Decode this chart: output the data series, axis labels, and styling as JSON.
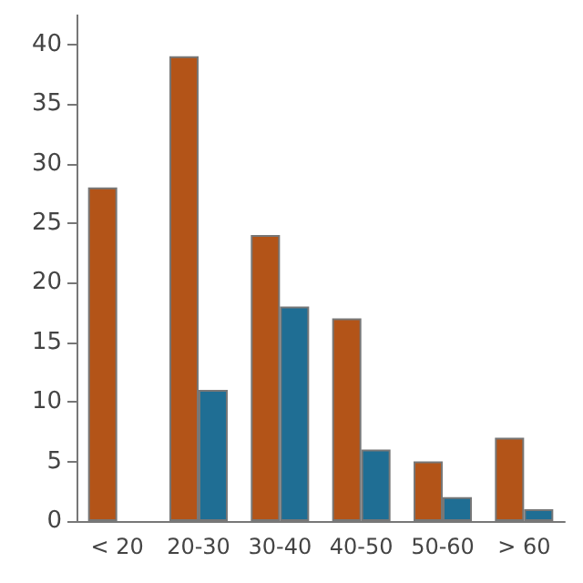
{
  "chart_data": {
    "type": "bar",
    "categories": [
      "< 20",
      "20-30",
      "30-40",
      "40-50",
      "50-60",
      "> 60"
    ],
    "series": [
      {
        "color": "#b35418",
        "values": [
          28,
          39,
          24,
          17,
          5,
          7
        ]
      },
      {
        "color": "#1f6e94",
        "values": [
          null,
          11,
          18,
          6,
          2,
          1
        ]
      }
    ],
    "ylim": [
      0,
      42.5
    ],
    "yticks": [
      0,
      5,
      10,
      15,
      20,
      25,
      30,
      35,
      40
    ],
    "grid": false
  }
}
